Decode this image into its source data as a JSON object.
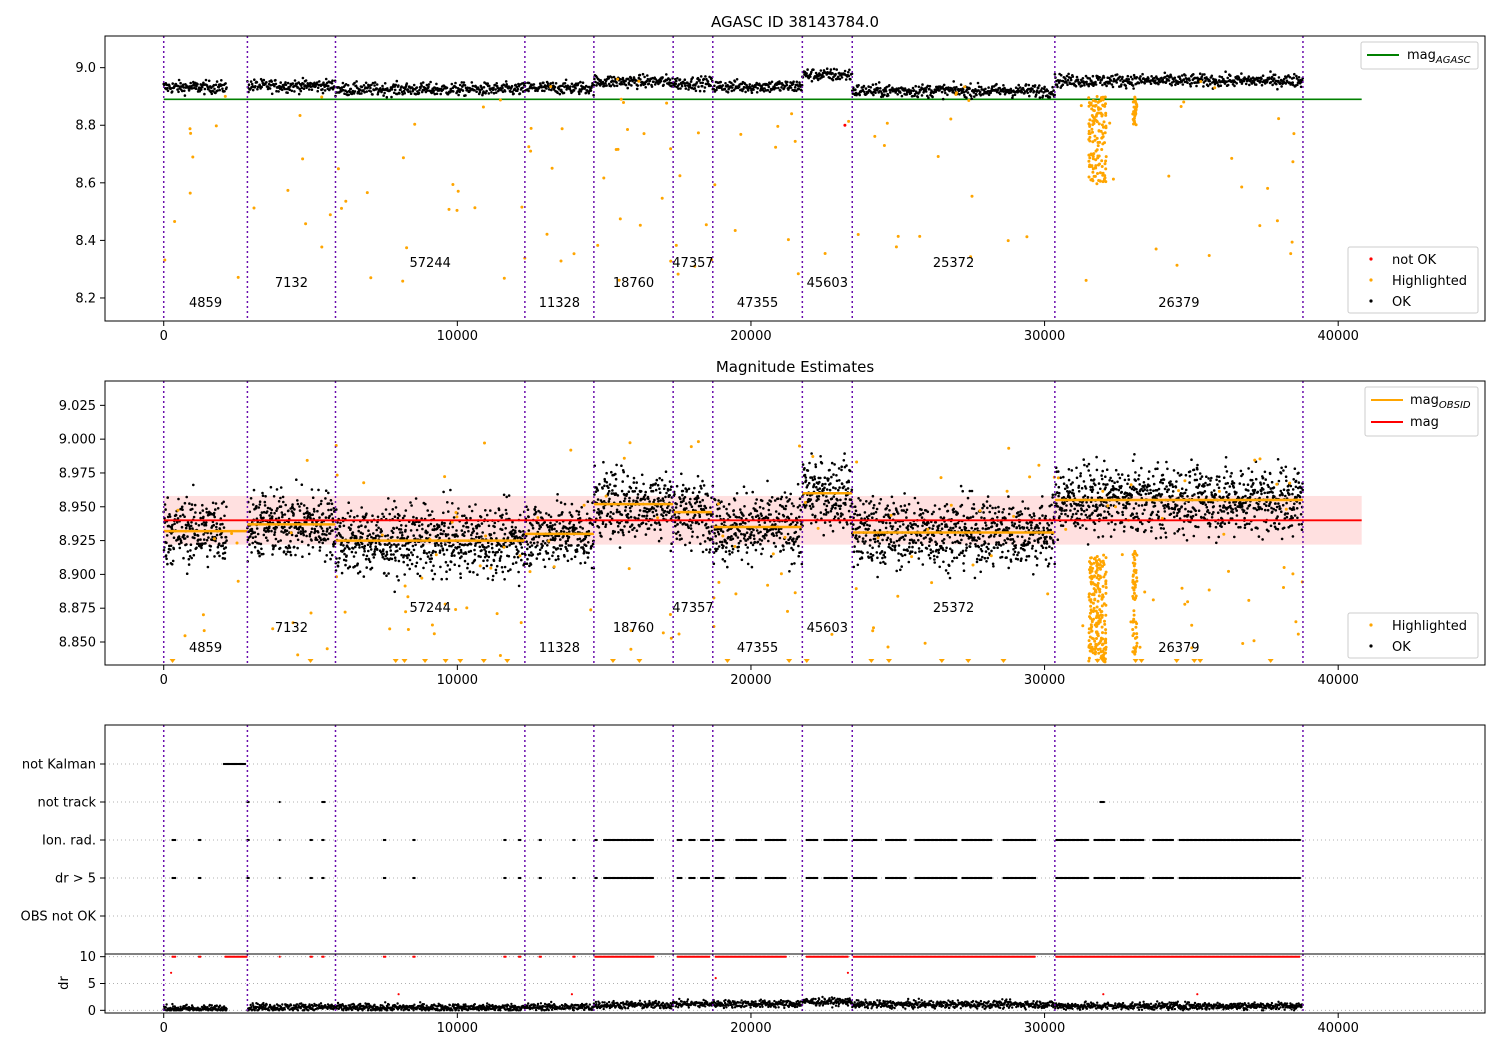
{
  "chart_data": [
    {
      "type": "scatter",
      "title": "AGASC ID 38143784.0",
      "xlim": [
        -2000,
        45000
      ],
      "ylim": [
        8.12,
        9.11
      ],
      "xticks": [
        0,
        10000,
        20000,
        30000,
        40000
      ],
      "yticks": [
        8.2,
        8.4,
        8.6,
        8.8,
        9.0
      ],
      "xtick_labels": [
        "0",
        "10000",
        "20000",
        "30000",
        "40000"
      ],
      "ytick_labels": [
        "8.2",
        "8.4",
        "8.6",
        "8.8",
        "9.0"
      ],
      "hlines": [
        {
          "name": "mag_AGASC",
          "y": 8.89,
          "x": [
            0,
            40800
          ],
          "color": "#008000"
        }
      ],
      "series": [
        {
          "name": "not OK",
          "color": "#ff0000"
        },
        {
          "name": "Highlighted",
          "color": "#ffa500"
        },
        {
          "name": "OK",
          "color": "#000000"
        }
      ],
      "legend_lines": [
        {
          "name": "mag",
          "sub": "AGASC",
          "color": "#008000"
        }
      ],
      "legend_lines_placement": "top-right",
      "legend_points_placement": "bottom-right"
    },
    {
      "type": "scatter",
      "title": "Magnitude Estimates",
      "xlim": [
        -2000,
        45000
      ],
      "ylim": [
        8.833,
        9.043
      ],
      "xticks": [
        0,
        10000,
        20000,
        30000,
        40000
      ],
      "yticks": [
        8.85,
        8.875,
        8.9,
        8.925,
        8.95,
        8.975,
        9.0,
        9.025
      ],
      "xtick_labels": [
        "0",
        "10000",
        "20000",
        "30000",
        "40000"
      ],
      "ytick_labels": [
        "8.850",
        "8.875",
        "8.900",
        "8.925",
        "8.950",
        "8.975",
        "9.000",
        "9.025"
      ],
      "mag": {
        "value": 8.94,
        "band": [
          8.922,
          8.958
        ],
        "x": [
          0,
          40800
        ],
        "color": "#ff0000"
      },
      "obsid_mag_segments": [
        {
          "x": [
            0,
            2850
          ],
          "mag": 8.932
        },
        {
          "x": [
            2850,
            5850
          ],
          "mag": 8.937
        },
        {
          "x": [
            5850,
            12300
          ],
          "mag": 8.925
        },
        {
          "x": [
            12300,
            14650
          ],
          "mag": 8.93
        },
        {
          "x": [
            14650,
            17350
          ],
          "mag": 8.952
        },
        {
          "x": [
            17350,
            18700
          ],
          "mag": 8.946
        },
        {
          "x": [
            18700,
            21750
          ],
          "mag": 8.935
        },
        {
          "x": [
            21750,
            23450
          ],
          "mag": 8.96
        },
        {
          "x": [
            23450,
            30350
          ],
          "mag": 8.931
        },
        {
          "x": [
            30350,
            38800
          ],
          "mag": 8.955
        }
      ],
      "series": [
        {
          "name": "Highlighted",
          "color": "#ffa500"
        },
        {
          "name": "OK",
          "color": "#000000"
        }
      ],
      "legend_lines": [
        {
          "name": "mag",
          "sub": "OBSID",
          "color": "#ffa500"
        },
        {
          "name": "mag",
          "sub": "",
          "color": "#ff0000"
        }
      ],
      "legend_lines_placement": "top-right",
      "legend_points_placement": "bottom-right"
    },
    {
      "type": "scatter",
      "xlim": [
        -2000,
        45000
      ],
      "flag_rows": [
        "not Kalman",
        "not track",
        "Ion. rad.",
        "dr > 5",
        "OBS not OK"
      ],
      "grid": true
    },
    {
      "type": "scatter",
      "xlim": [
        -2000,
        45000
      ],
      "ylim": [
        -0.5,
        10.5
      ],
      "xticks": [
        0,
        10000,
        20000,
        30000,
        40000
      ],
      "yticks": [
        0,
        5,
        10
      ],
      "xtick_labels": [
        "0",
        "10000",
        "20000",
        "30000",
        "40000"
      ],
      "ytick_labels": [
        "0",
        "5",
        "10"
      ],
      "ylabel": "dr",
      "grid": true
    }
  ],
  "observations": [
    {
      "obsid": "4859",
      "start": 0,
      "end": 2850
    },
    {
      "obsid": "7132",
      "start": 2850,
      "end": 5850
    },
    {
      "obsid": "57244",
      "start": 5850,
      "end": 12300
    },
    {
      "obsid": "11328",
      "start": 12300,
      "end": 14650
    },
    {
      "obsid": "18760",
      "start": 14650,
      "end": 17350
    },
    {
      "obsid": "47357",
      "start": 17350,
      "end": 18700
    },
    {
      "obsid": "47355",
      "start": 18700,
      "end": 21750
    },
    {
      "obsid": "45603",
      "start": 21750,
      "end": 23450
    },
    {
      "obsid": "25372",
      "start": 23450,
      "end": 30350
    },
    {
      "obsid": "26379",
      "start": 30350,
      "end": 38800
    }
  ],
  "boundaries": [
    0,
    2850,
    5850,
    12300,
    14650,
    17350,
    18700,
    21750,
    23450,
    30350,
    38800
  ]
}
